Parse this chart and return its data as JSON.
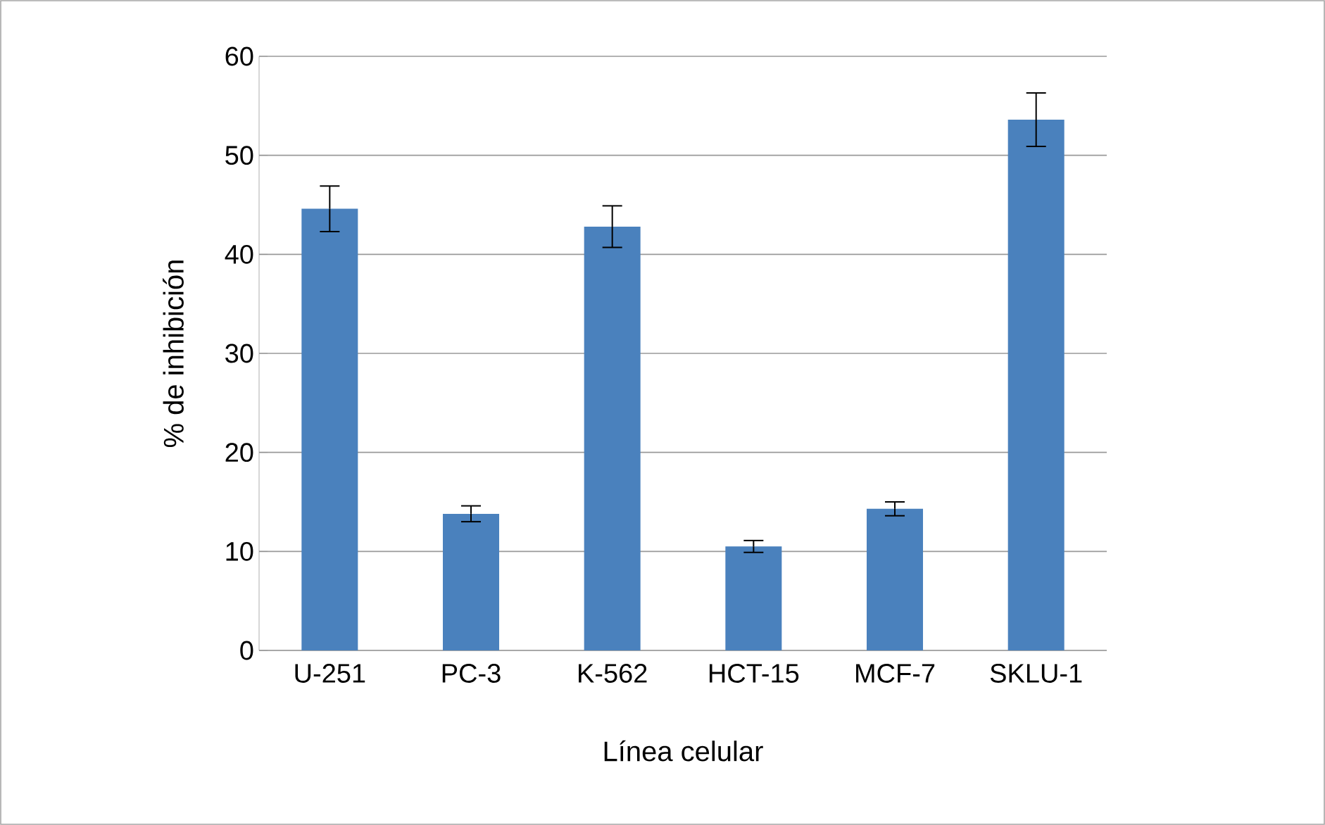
{
  "chart_data": {
    "type": "bar",
    "xlabel": "Línea celular",
    "ylabel": "% de inhibición",
    "categories": [
      "U-251",
      "PC-3",
      "K-562",
      "HCT-15",
      "MCF-7",
      "SKLU-1"
    ],
    "values": [
      44.6,
      13.8,
      42.8,
      10.5,
      14.3,
      53.6
    ],
    "errors": [
      2.3,
      0.8,
      2.1,
      0.6,
      0.7,
      2.7
    ],
    "color": "#4a81bd",
    "ylim": [
      0,
      60
    ],
    "yticks": [
      0,
      10,
      20,
      30,
      40,
      50,
      60
    ],
    "grid": "y"
  }
}
